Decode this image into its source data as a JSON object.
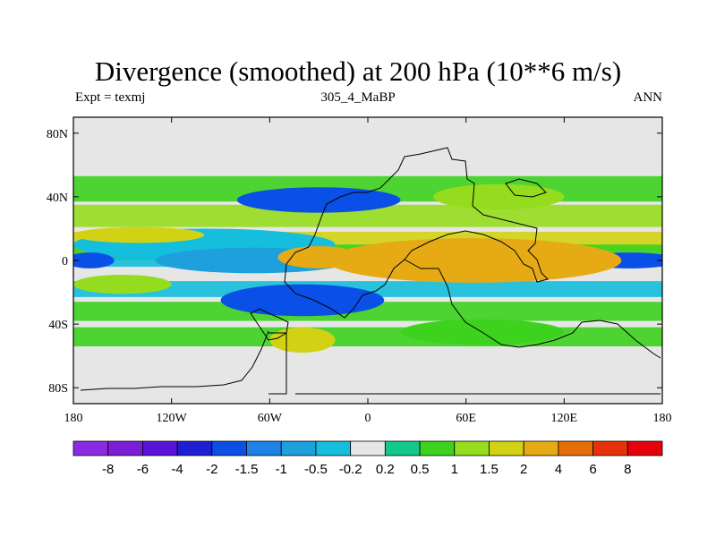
{
  "chart_data": {
    "type": "heatmap",
    "title": "Divergence (smoothed) at 200 hPa (10**6 m/s)",
    "left_label": "Expt = texmj",
    "center_label": "305_4_MaBP",
    "right_label": "ANN",
    "x_ticks": [
      "180",
      "120W",
      "60W",
      "0",
      "60E",
      "120E",
      "180"
    ],
    "x_tick_values": [
      -180,
      -120,
      -60,
      0,
      60,
      120,
      180
    ],
    "y_ticks": [
      "80N",
      "40N",
      "0",
      "40S",
      "80S"
    ],
    "y_tick_values": [
      80,
      40,
      0,
      -40,
      -80
    ],
    "xlim": [
      -180,
      180
    ],
    "ylim": [
      -90,
      90
    ],
    "colorbar": {
      "labels": [
        "-8",
        "-6",
        "-4",
        "-2",
        "-1.5",
        "-1",
        "-0.5",
        "-0.2",
        "0.2",
        "0.5",
        "1",
        "1.5",
        "2",
        "4",
        "6",
        "8"
      ],
      "colors": [
        "#8a2be2",
        "#7a1ed8",
        "#5a14d8",
        "#1e1ed2",
        "#0a50e6",
        "#1e82e6",
        "#1ea0dc",
        "#14bedc",
        "#e6e6e6",
        "#14c88c",
        "#3cd21e",
        "#96dc1e",
        "#d2d214",
        "#e6aa14",
        "#e66e0a",
        "#e6320a",
        "#e6000a"
      ]
    },
    "blobs": [
      {
        "lon": -100,
        "lat": 10,
        "w": 80,
        "h": 10,
        "level": "-0.5"
      },
      {
        "lon": -70,
        "lat": 0,
        "w": 60,
        "h": 8,
        "level": "-1"
      },
      {
        "lon": -30,
        "lat": 38,
        "w": 50,
        "h": 8,
        "level": "-2"
      },
      {
        "lon": -40,
        "lat": -25,
        "w": 50,
        "h": 10,
        "level": "-2"
      },
      {
        "lon": 160,
        "lat": 0,
        "w": 30,
        "h": 5,
        "level": "-2"
      },
      {
        "lon": -170,
        "lat": 0,
        "w": 15,
        "h": 5,
        "level": "-2"
      },
      {
        "lon": 65,
        "lat": 0,
        "w": 90,
        "h": 14,
        "level": "2"
      },
      {
        "lon": -30,
        "lat": 2,
        "w": 25,
        "h": 7,
        "level": "2"
      },
      {
        "lon": -140,
        "lat": 16,
        "w": 40,
        "h": 5,
        "level": "1.5"
      },
      {
        "lon": -150,
        "lat": -15,
        "w": 30,
        "h": 6,
        "level": "1"
      },
      {
        "lon": -40,
        "lat": -50,
        "w": 20,
        "h": 8,
        "level": "1.5"
      },
      {
        "lon": 80,
        "lat": 40,
        "w": 40,
        "h": 8,
        "level": "1"
      },
      {
        "lon": 70,
        "lat": -45,
        "w": 50,
        "h": 8,
        "level": "0.5"
      }
    ]
  }
}
